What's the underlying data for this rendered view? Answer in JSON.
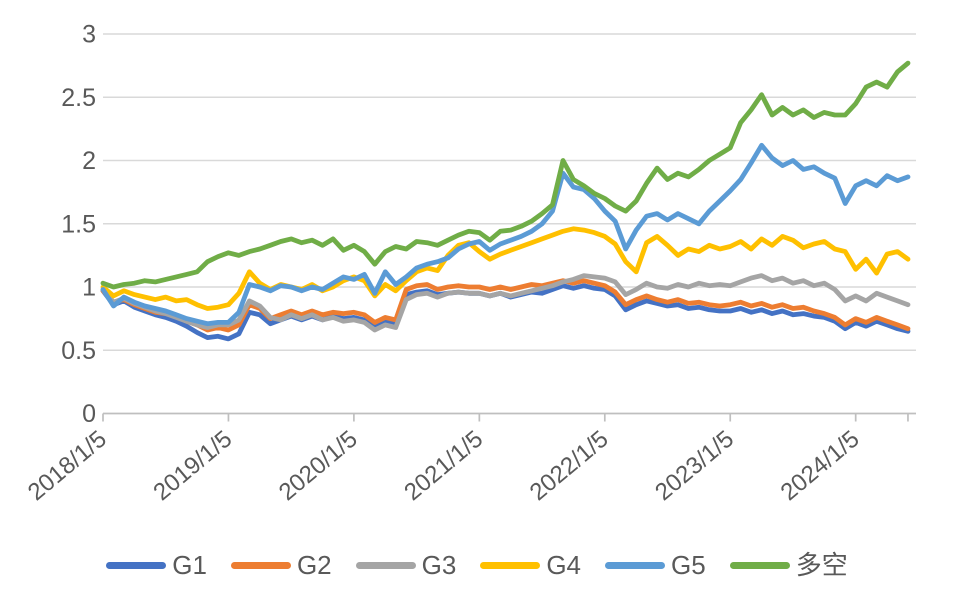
{
  "chart_data": {
    "type": "line",
    "title": "",
    "xlabel": "",
    "ylabel": "",
    "grid": true,
    "legend_position": "bottom",
    "background_color": "#ffffff",
    "style": {
      "gridline_color": "#d9d9d9",
      "axis_line_color": "#bfbfbf",
      "axis_text_color": "#595959"
    },
    "y_axis": {
      "min": 0,
      "max": 3,
      "tick_values": [
        0,
        0.5,
        1,
        1.5,
        2,
        2.5,
        3
      ],
      "tick_labels": [
        "0",
        "0.5",
        "1",
        "1.5",
        "2",
        "2.5",
        "3"
      ]
    },
    "x_axis": {
      "tick_labels": [
        "2018/1/5",
        "2019/1/5",
        "2020/1/5",
        "2021/1/5",
        "2022/1/5",
        "2023/1/5",
        "2024/1/5"
      ],
      "tick_indices": [
        0,
        12,
        24,
        36,
        48,
        60,
        72
      ],
      "label_rotation_deg": -40,
      "sampling_note": "values estimated at monthly intervals from 2018-01 through 2024-06"
    },
    "series": [
      {
        "name": "G1",
        "color": "#4472C4",
        "values": [
          0.97,
          0.86,
          0.89,
          0.84,
          0.81,
          0.78,
          0.76,
          0.73,
          0.69,
          0.64,
          0.6,
          0.61,
          0.59,
          0.63,
          0.8,
          0.78,
          0.71,
          0.74,
          0.77,
          0.74,
          0.77,
          0.74,
          0.77,
          0.75,
          0.76,
          0.74,
          0.68,
          0.73,
          0.71,
          0.94,
          0.96,
          0.97,
          0.94,
          0.95,
          0.96,
          0.95,
          0.95,
          0.93,
          0.95,
          0.92,
          0.94,
          0.96,
          0.95,
          0.98,
          1.01,
          0.99,
          1.01,
          0.99,
          0.98,
          0.93,
          0.82,
          0.86,
          0.89,
          0.87,
          0.85,
          0.86,
          0.83,
          0.84,
          0.82,
          0.81,
          0.81,
          0.83,
          0.8,
          0.82,
          0.79,
          0.81,
          0.78,
          0.79,
          0.77,
          0.76,
          0.73,
          0.67,
          0.72,
          0.69,
          0.73,
          0.7,
          0.67,
          0.65
        ]
      },
      {
        "name": "G2",
        "color": "#ED7D31",
        "values": [
          0.97,
          0.88,
          0.9,
          0.86,
          0.83,
          0.8,
          0.79,
          0.77,
          0.73,
          0.7,
          0.66,
          0.68,
          0.66,
          0.7,
          0.86,
          0.83,
          0.75,
          0.78,
          0.81,
          0.78,
          0.81,
          0.78,
          0.8,
          0.79,
          0.8,
          0.78,
          0.72,
          0.76,
          0.74,
          0.98,
          1.01,
          1.02,
          0.98,
          1.0,
          1.01,
          1.0,
          1.0,
          0.98,
          1.0,
          0.98,
          1.0,
          1.02,
          1.01,
          1.03,
          1.05,
          1.03,
          1.05,
          1.03,
          1.01,
          0.96,
          0.86,
          0.9,
          0.93,
          0.9,
          0.88,
          0.9,
          0.87,
          0.88,
          0.86,
          0.85,
          0.86,
          0.88,
          0.85,
          0.87,
          0.84,
          0.86,
          0.83,
          0.84,
          0.81,
          0.79,
          0.76,
          0.7,
          0.75,
          0.72,
          0.76,
          0.73,
          0.7,
          0.67
        ]
      },
      {
        "name": "G3",
        "color": "#A5A5A5",
        "values": [
          0.98,
          0.88,
          0.91,
          0.87,
          0.84,
          0.81,
          0.79,
          0.76,
          0.73,
          0.7,
          0.68,
          0.7,
          0.7,
          0.74,
          0.89,
          0.85,
          0.76,
          0.74,
          0.78,
          0.75,
          0.78,
          0.74,
          0.76,
          0.73,
          0.74,
          0.72,
          0.66,
          0.7,
          0.68,
          0.9,
          0.94,
          0.95,
          0.92,
          0.95,
          0.96,
          0.95,
          0.95,
          0.93,
          0.95,
          0.93,
          0.95,
          0.97,
          0.99,
          1.01,
          1.04,
          1.06,
          1.09,
          1.08,
          1.07,
          1.04,
          0.94,
          0.98,
          1.03,
          1.0,
          0.99,
          1.02,
          1.0,
          1.03,
          1.01,
          1.02,
          1.01,
          1.04,
          1.07,
          1.09,
          1.05,
          1.07,
          1.03,
          1.05,
          1.01,
          1.03,
          0.98,
          0.89,
          0.93,
          0.89,
          0.95,
          0.92,
          0.89,
          0.86
        ]
      },
      {
        "name": "G4",
        "color": "#FFC000",
        "values": [
          1.0,
          0.93,
          0.97,
          0.94,
          0.92,
          0.9,
          0.92,
          0.89,
          0.9,
          0.86,
          0.83,
          0.84,
          0.86,
          0.95,
          1.12,
          1.03,
          0.98,
          1.02,
          1.0,
          0.98,
          1.02,
          0.97,
          1.0,
          1.05,
          1.08,
          1.05,
          0.93,
          1.02,
          0.97,
          1.05,
          1.12,
          1.15,
          1.13,
          1.25,
          1.33,
          1.35,
          1.28,
          1.22,
          1.26,
          1.29,
          1.32,
          1.35,
          1.38,
          1.41,
          1.44,
          1.46,
          1.45,
          1.43,
          1.4,
          1.34,
          1.2,
          1.12,
          1.35,
          1.4,
          1.33,
          1.25,
          1.3,
          1.28,
          1.33,
          1.3,
          1.32,
          1.36,
          1.3,
          1.38,
          1.33,
          1.4,
          1.37,
          1.31,
          1.34,
          1.36,
          1.3,
          1.28,
          1.14,
          1.22,
          1.11,
          1.26,
          1.28,
          1.22
        ]
      },
      {
        "name": "G5",
        "color": "#5B9BD5",
        "values": [
          0.98,
          0.85,
          0.92,
          0.88,
          0.85,
          0.83,
          0.81,
          0.78,
          0.75,
          0.73,
          0.71,
          0.72,
          0.72,
          0.8,
          1.02,
          1.0,
          0.97,
          1.01,
          1.0,
          0.97,
          1.0,
          0.98,
          1.03,
          1.08,
          1.06,
          1.1,
          0.95,
          1.12,
          1.02,
          1.08,
          1.15,
          1.18,
          1.2,
          1.23,
          1.3,
          1.34,
          1.36,
          1.29,
          1.34,
          1.37,
          1.4,
          1.44,
          1.5,
          1.6,
          1.9,
          1.79,
          1.77,
          1.7,
          1.6,
          1.52,
          1.3,
          1.45,
          1.56,
          1.58,
          1.53,
          1.58,
          1.54,
          1.5,
          1.6,
          1.68,
          1.76,
          1.85,
          1.98,
          2.12,
          2.02,
          1.96,
          2.0,
          1.93,
          1.95,
          1.9,
          1.86,
          1.66,
          1.8,
          1.84,
          1.8,
          1.88,
          1.84,
          1.87
        ]
      },
      {
        "name": "多空",
        "color": "#70AD47",
        "values": [
          1.03,
          1.0,
          1.02,
          1.03,
          1.05,
          1.04,
          1.06,
          1.08,
          1.1,
          1.12,
          1.2,
          1.24,
          1.27,
          1.25,
          1.28,
          1.3,
          1.33,
          1.36,
          1.38,
          1.35,
          1.37,
          1.33,
          1.38,
          1.29,
          1.33,
          1.28,
          1.18,
          1.28,
          1.32,
          1.3,
          1.36,
          1.35,
          1.33,
          1.37,
          1.41,
          1.44,
          1.43,
          1.37,
          1.44,
          1.45,
          1.48,
          1.52,
          1.58,
          1.65,
          2.0,
          1.85,
          1.8,
          1.74,
          1.7,
          1.64,
          1.6,
          1.68,
          1.82,
          1.94,
          1.85,
          1.9,
          1.87,
          1.93,
          2.0,
          2.05,
          2.1,
          2.3,
          2.4,
          2.52,
          2.36,
          2.42,
          2.36,
          2.4,
          2.34,
          2.38,
          2.36,
          2.36,
          2.45,
          2.58,
          2.62,
          2.58,
          2.7,
          2.77
        ]
      }
    ]
  }
}
